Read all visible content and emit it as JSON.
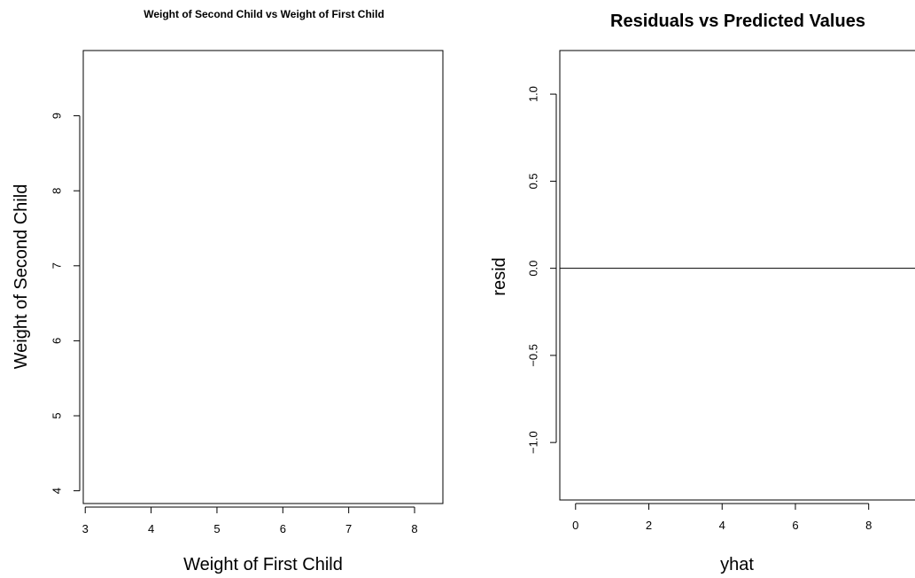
{
  "chart_data": [
    {
      "type": "scatter",
      "title": "Weight of Second Child vs Weight of First Child",
      "xlabel": "Weight of First Child",
      "ylabel": "Weight of Second Child",
      "xlim": [
        2.97,
        8.43
      ],
      "ylim": [
        3.83,
        9.87
      ],
      "xticks": [
        3,
        4,
        5,
        6,
        7,
        8
      ],
      "yticks": [
        4,
        5,
        6,
        7,
        8,
        9
      ],
      "series": [],
      "grid": false
    },
    {
      "type": "scatter",
      "title": "Residuals vs Predicted Values",
      "xlabel": "yhat",
      "ylabel": "resid",
      "xlim": [
        -0.43,
        9.53
      ],
      "ylim": [
        -1.33,
        1.25
      ],
      "xticks": [
        0,
        2,
        4,
        6,
        8
      ],
      "yticks": [
        -1.0,
        -0.5,
        0.0,
        0.5,
        1.0
      ],
      "ytick_labels": [
        "−1.0",
        "−0.5",
        "0.0",
        "0.5",
        "1.0"
      ],
      "hline": 0,
      "series": [],
      "grid": false
    }
  ]
}
